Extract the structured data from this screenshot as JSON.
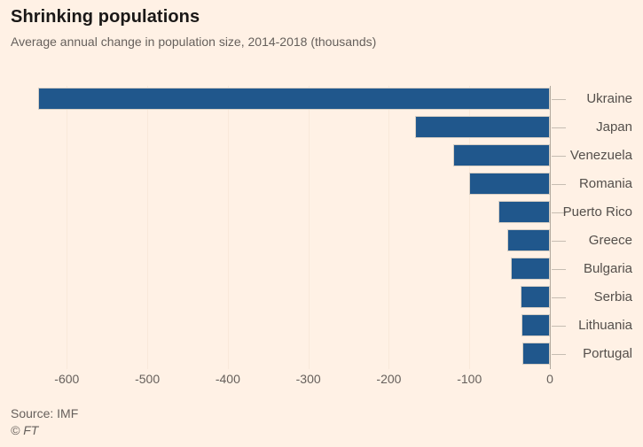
{
  "page": {
    "background_color": "#fff1e5"
  },
  "header": {
    "title": "Shrinking populations",
    "subtitle": "Average annual change in population size, 2014-2018 (thousands)"
  },
  "chart_data": {
    "type": "bar",
    "orientation": "horizontal",
    "title": "Shrinking populations",
    "subtitle": "Average annual change in population size, 2014-2018 (thousands)",
    "xlabel": "",
    "ylabel": "",
    "categories": [
      "Ukraine",
      "Japan",
      "Venezuela",
      "Romania",
      "Puerto Rico",
      "Greece",
      "Bulgaria",
      "Serbia",
      "Lithuania",
      "Portugal"
    ],
    "values": [
      -636,
      -167,
      -120,
      -100,
      -64,
      -53,
      -48,
      -36,
      -35,
      -34
    ],
    "xlim": [
      -640,
      0
    ],
    "x_ticks": [
      -600,
      -500,
      -400,
      -300,
      -200,
      -100,
      0
    ],
    "grid": true,
    "legend": "none",
    "bar_color": "#20578c",
    "grid_color": "#f9e9da",
    "axis_line_color": "#b3aa9f"
  },
  "footer": {
    "source": "Source: IMF",
    "copyright": "© FT"
  }
}
